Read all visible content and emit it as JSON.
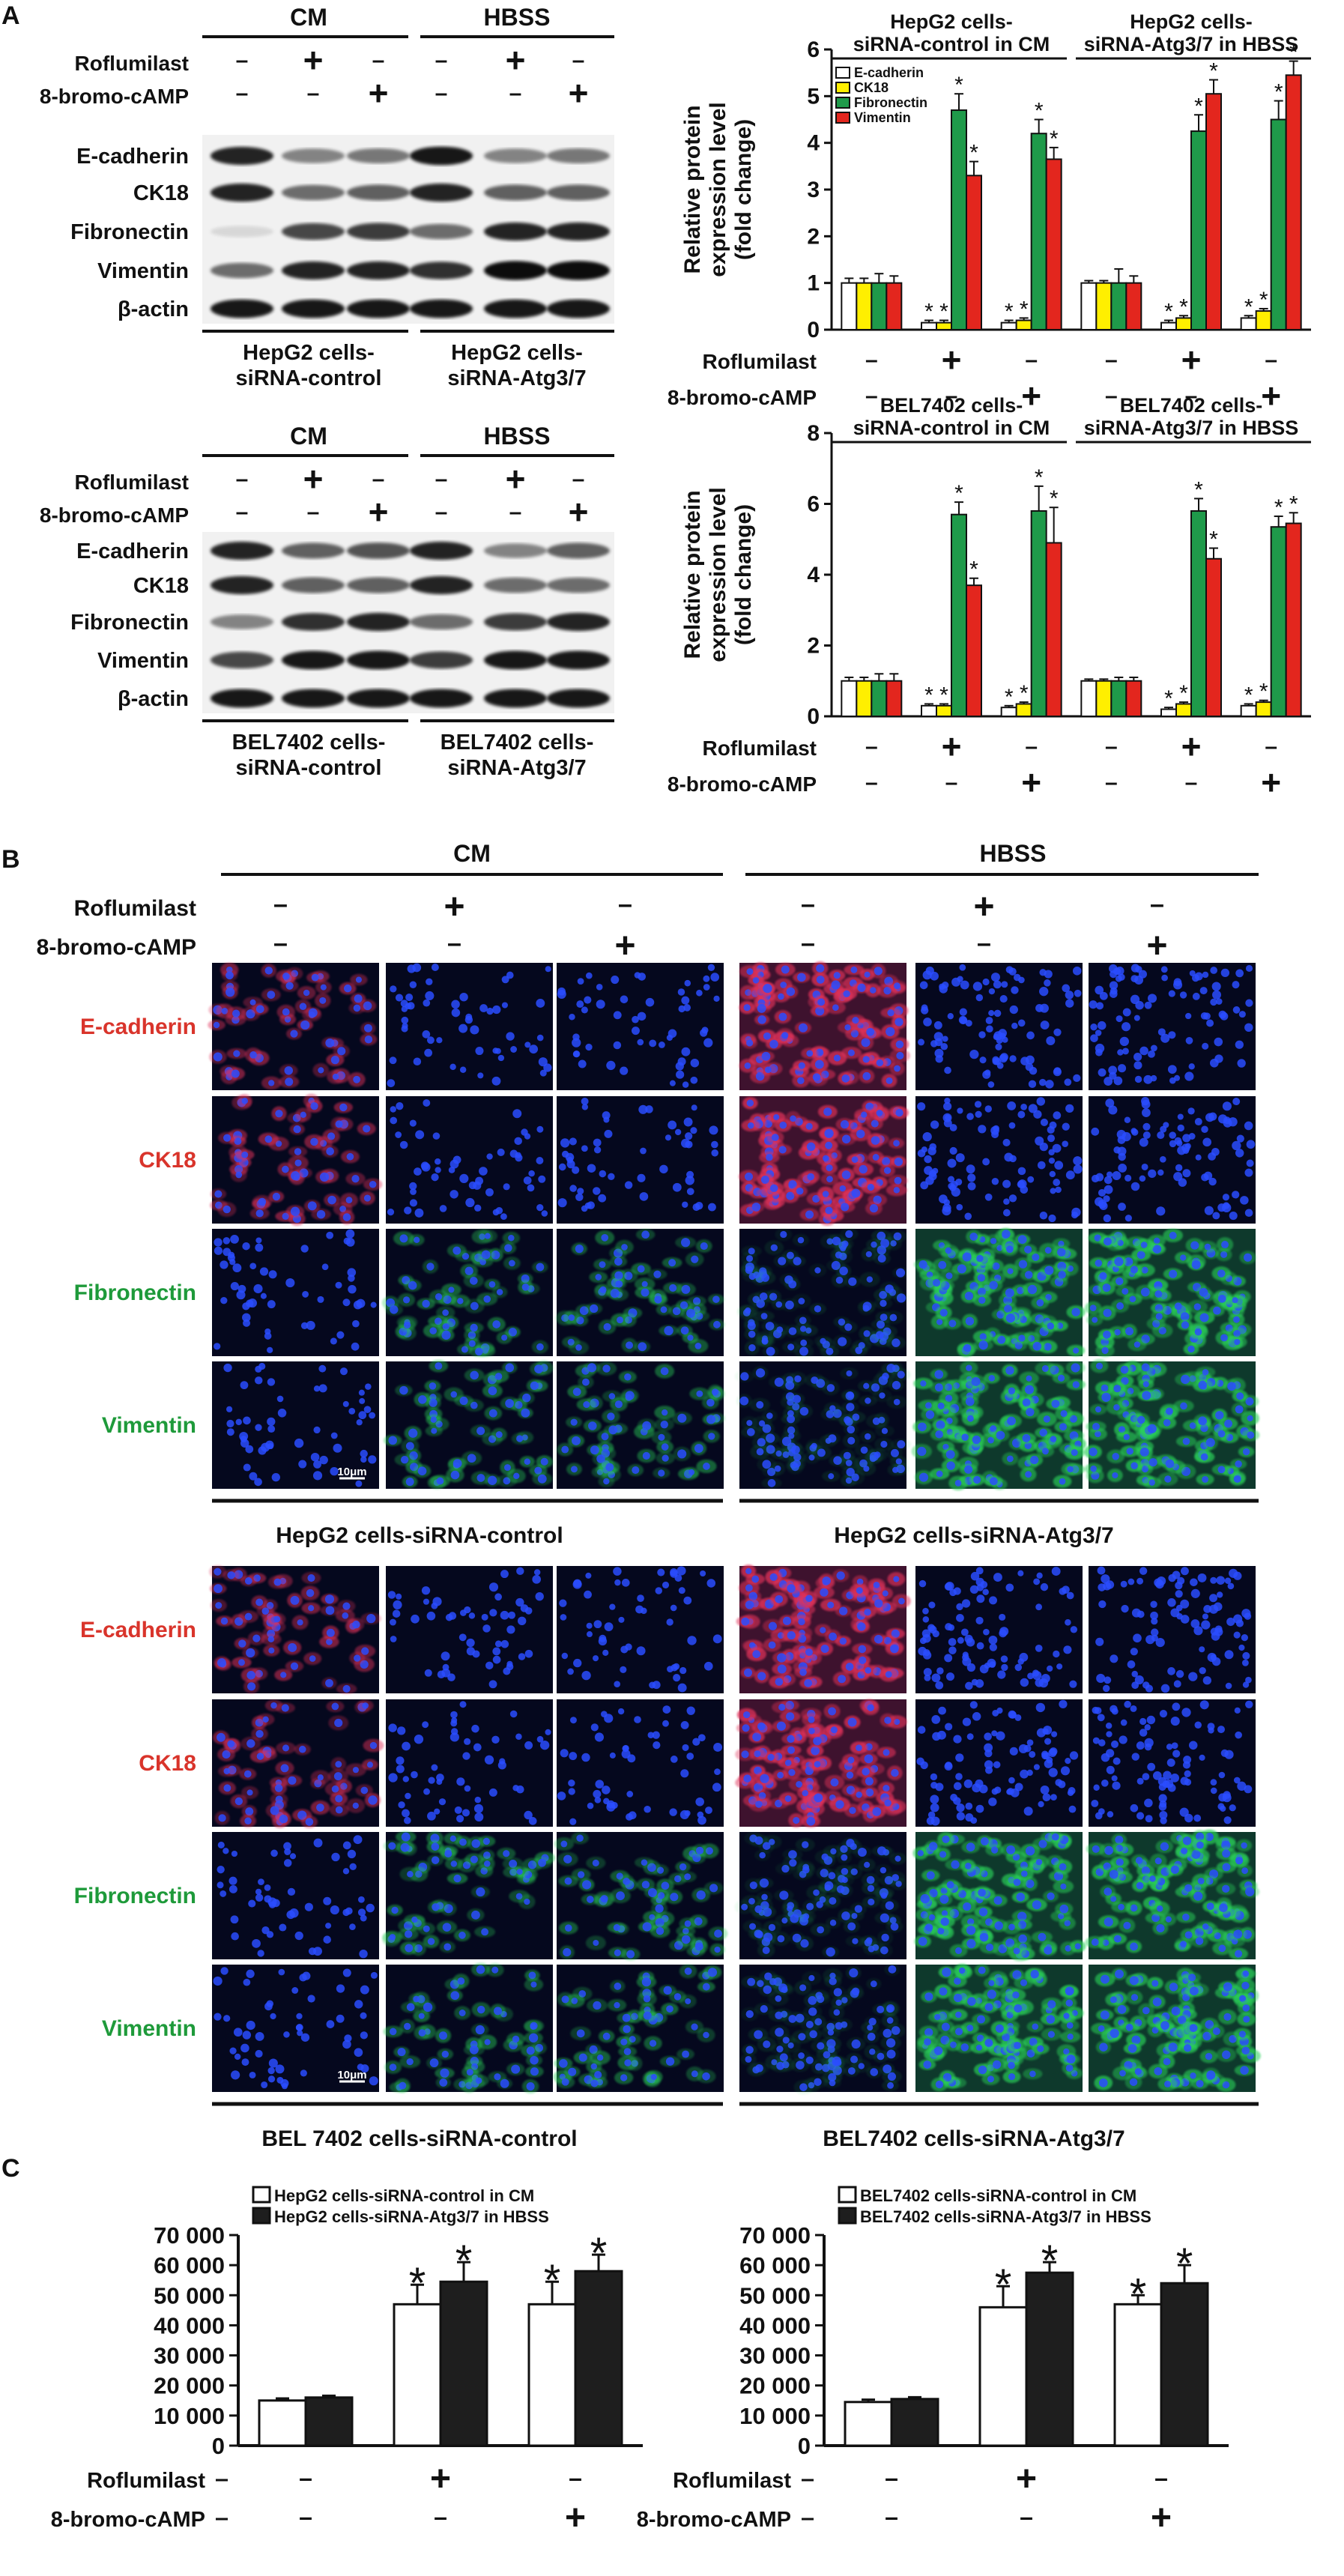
{
  "panel_labels": {
    "a": "A",
    "b": "B",
    "c": "C"
  },
  "blots": [
    {
      "groups": [
        "CM",
        "HBSS"
      ],
      "treatments": [
        {
          "name": "Roflumilast",
          "signs": [
            "–",
            "+",
            "–",
            "–",
            "+",
            "–"
          ]
        },
        {
          "name": "8-bromo-cAMP",
          "signs": [
            "–",
            "–",
            "+",
            "–",
            "–",
            "+"
          ]
        }
      ],
      "proteins": [
        "E-cadherin",
        "CK18",
        "Fibronectin",
        "Vimentin",
        "β-actin"
      ],
      "intensity": [
        [
          0.85,
          0.45,
          0.5,
          0.9,
          0.45,
          0.5
        ],
        [
          0.85,
          0.55,
          0.6,
          0.85,
          0.6,
          0.6
        ],
        [
          0.1,
          0.7,
          0.75,
          0.55,
          0.85,
          0.85
        ],
        [
          0.55,
          0.85,
          0.85,
          0.8,
          0.95,
          0.95
        ],
        [
          0.9,
          0.9,
          0.9,
          0.9,
          0.9,
          0.9
        ]
      ],
      "footer": [
        [
          "HepG2 cells-",
          "siRNA-control"
        ],
        [
          "HepG2 cells-",
          "siRNA-Atg3/7"
        ]
      ]
    },
    {
      "groups": [
        "CM",
        "HBSS"
      ],
      "treatments": [
        {
          "name": "Roflumilast",
          "signs": [
            "–",
            "+",
            "–",
            "–",
            "+",
            "–"
          ]
        },
        {
          "name": "8-bromo-cAMP",
          "signs": [
            "–",
            "–",
            "+",
            "–",
            "–",
            "+"
          ]
        }
      ],
      "proteins": [
        "E-cadherin",
        "CK18",
        "Fibronectin",
        "Vimentin",
        "β-actin"
      ],
      "intensity": [
        [
          0.85,
          0.6,
          0.65,
          0.85,
          0.45,
          0.6
        ],
        [
          0.85,
          0.6,
          0.6,
          0.85,
          0.55,
          0.55
        ],
        [
          0.45,
          0.8,
          0.85,
          0.55,
          0.75,
          0.85
        ],
        [
          0.7,
          0.9,
          0.9,
          0.75,
          0.9,
          0.9
        ],
        [
          0.9,
          0.9,
          0.9,
          0.9,
          0.9,
          0.9
        ]
      ],
      "footer": [
        [
          "BEL7402 cells-",
          "siRNA-control"
        ],
        [
          "BEL7402 cells-",
          "siRNA-Atg3/7"
        ]
      ]
    }
  ],
  "ifm": {
    "groups": [
      "CM",
      "HBSS"
    ],
    "treatments": [
      {
        "name": "Roflumilast",
        "signs": [
          "–",
          "+",
          "–",
          "–",
          "+",
          "–"
        ]
      },
      {
        "name": "8-bromo-cAMP",
        "signs": [
          "–",
          "–",
          "+",
          "–",
          "–",
          "+"
        ]
      }
    ],
    "row_labels": [
      {
        "text": "E-cadherin",
        "color": "#d9342b"
      },
      {
        "text": "CK18",
        "color": "#d9342b"
      },
      {
        "text": "Fibronectin",
        "color": "#1e9a3a"
      },
      {
        "text": "Vimentin",
        "color": "#1e9a3a"
      }
    ],
    "scale_bar": "10μm",
    "cell_lines": [
      {
        "left": "HepG2 cells-siRNA-control",
        "right": "HepG2 cells-siRNA-Atg3/7"
      },
      {
        "left": "BEL 7402 cells-siRNA-control",
        "right": "BEL7402 cells-siRNA-Atg3/7"
      }
    ]
  },
  "chart_data": [
    {
      "type": "bar",
      "title": [
        "HepG2 cells-",
        "siRNA-control in CM",
        "HepG2 cells-",
        "siRNA-Atg3/7 in HBSS"
      ],
      "ylabel": [
        "Relative protein",
        "expression level",
        "(fold change)"
      ],
      "ylim": [
        0,
        6
      ],
      "yticks": [
        0,
        1,
        2,
        3,
        4,
        5,
        6
      ],
      "legend": [
        "E-cadherin",
        "CK18",
        "Fibronectin",
        "Vimentin"
      ],
      "colors": [
        "#ffffff",
        "#ffef00",
        "#1f9a4a",
        "#e3261e"
      ],
      "groups": [
        {
          "condition": "siRNA-control in CM",
          "roflumilast": "–",
          "cAMP": "–",
          "values": [
            1.0,
            1.0,
            1.0,
            1.0
          ],
          "errors": [
            0.1,
            0.1,
            0.2,
            0.15
          ],
          "stars": [
            false,
            false,
            false,
            false
          ]
        },
        {
          "condition": "siRNA-control in CM",
          "roflumilast": "+",
          "cAMP": "–",
          "values": [
            0.15,
            0.15,
            4.7,
            3.3
          ],
          "errors": [
            0.05,
            0.05,
            0.35,
            0.3
          ],
          "stars": [
            true,
            true,
            true,
            true
          ]
        },
        {
          "condition": "siRNA-control in CM",
          "roflumilast": "–",
          "cAMP": "+",
          "values": [
            0.15,
            0.2,
            4.2,
            3.65
          ],
          "errors": [
            0.05,
            0.05,
            0.3,
            0.25
          ],
          "stars": [
            true,
            true,
            true,
            true
          ]
        },
        {
          "condition": "siRNA-Atg3/7 in HBSS",
          "roflumilast": "–",
          "cAMP": "–",
          "values": [
            1.0,
            1.0,
            1.0,
            1.0
          ],
          "errors": [
            0.05,
            0.05,
            0.3,
            0.15
          ],
          "stars": [
            false,
            false,
            false,
            false
          ]
        },
        {
          "condition": "siRNA-Atg3/7 in HBSS",
          "roflumilast": "+",
          "cAMP": "–",
          "values": [
            0.15,
            0.25,
            4.25,
            5.05
          ],
          "errors": [
            0.05,
            0.05,
            0.35,
            0.3
          ],
          "stars": [
            true,
            true,
            true,
            true
          ]
        },
        {
          "condition": "siRNA-Atg3/7 in HBSS",
          "roflumilast": "–",
          "cAMP": "+",
          "values": [
            0.25,
            0.4,
            4.5,
            5.45
          ],
          "errors": [
            0.05,
            0.05,
            0.4,
            0.3
          ],
          "stars": [
            true,
            true,
            true,
            true
          ]
        }
      ],
      "treatments": [
        {
          "name": "Roflumilast",
          "signs": [
            "–",
            "+",
            "–",
            "–",
            "+",
            "–"
          ]
        },
        {
          "name": "8-bromo-cAMP",
          "signs": [
            "–",
            "–",
            "+",
            "–",
            "–",
            "+"
          ]
        }
      ]
    },
    {
      "type": "bar",
      "title": [
        "BEL7402 cells-",
        "siRNA-control in CM",
        "BEL7402 cells-",
        "siRNA-Atg3/7 in HBSS"
      ],
      "ylabel": [
        "Relative protein",
        "expression level",
        "(fold change)"
      ],
      "ylim": [
        0,
        8
      ],
      "yticks": [
        0,
        2,
        4,
        6,
        8
      ],
      "legend": [],
      "colors": [
        "#ffffff",
        "#ffef00",
        "#1f9a4a",
        "#e3261e"
      ],
      "groups": [
        {
          "condition": "siRNA-control in CM",
          "roflumilast": "–",
          "cAMP": "–",
          "values": [
            1.0,
            1.0,
            1.0,
            1.0
          ],
          "errors": [
            0.1,
            0.1,
            0.2,
            0.2
          ],
          "stars": [
            false,
            false,
            false,
            false
          ]
        },
        {
          "condition": "siRNA-control in CM",
          "roflumilast": "+",
          "cAMP": "–",
          "values": [
            0.3,
            0.3,
            5.7,
            3.7
          ],
          "errors": [
            0.05,
            0.05,
            0.35,
            0.2
          ],
          "stars": [
            true,
            true,
            true,
            true
          ]
        },
        {
          "condition": "siRNA-control in CM",
          "roflumilast": "–",
          "cAMP": "+",
          "values": [
            0.25,
            0.35,
            5.8,
            4.9
          ],
          "errors": [
            0.05,
            0.05,
            0.7,
            1.0
          ],
          "stars": [
            true,
            true,
            true,
            true
          ]
        },
        {
          "condition": "siRNA-Atg3/7 in HBSS",
          "roflumilast": "–",
          "cAMP": "–",
          "values": [
            1.0,
            1.0,
            1.0,
            1.0
          ],
          "errors": [
            0.05,
            0.05,
            0.1,
            0.1
          ],
          "stars": [
            false,
            false,
            false,
            false
          ]
        },
        {
          "condition": "siRNA-Atg3/7 in HBSS",
          "roflumilast": "+",
          "cAMP": "–",
          "values": [
            0.2,
            0.35,
            5.8,
            4.45
          ],
          "errors": [
            0.05,
            0.05,
            0.35,
            0.3
          ],
          "stars": [
            true,
            true,
            true,
            true
          ]
        },
        {
          "condition": "siRNA-Atg3/7 in HBSS",
          "roflumilast": "–",
          "cAMP": "+",
          "values": [
            0.3,
            0.4,
            5.35,
            5.45
          ],
          "errors": [
            0.05,
            0.05,
            0.3,
            0.3
          ],
          "stars": [
            true,
            true,
            true,
            true
          ]
        }
      ],
      "treatments": [
        {
          "name": "Roflumilast",
          "signs": [
            "–",
            "+",
            "–",
            "–",
            "+",
            "–"
          ]
        },
        {
          "name": "8-bromo-cAMP",
          "signs": [
            "–",
            "–",
            "+",
            "–",
            "–",
            "+"
          ]
        }
      ]
    },
    {
      "type": "bar",
      "legend": [
        "HepG2 cells-siRNA-control in CM",
        "HepG2 cells-siRNA-Atg3/7 in HBSS"
      ],
      "colors": [
        "#ffffff",
        "#1e1e1e"
      ],
      "ylim": [
        0,
        70000
      ],
      "yticks": [
        0,
        10000,
        20000,
        30000,
        40000,
        50000,
        60000,
        70000
      ],
      "ytick_labels": [
        "0",
        "10 000",
        "20 000",
        "30 000",
        "40 000",
        "50 000",
        "60 000",
        "70 000"
      ],
      "groups": [
        {
          "roflumilast": "–",
          "cAMP": "–",
          "values": [
            15000,
            16000
          ],
          "errors": [
            700,
            600
          ],
          "stars": [
            false,
            false
          ]
        },
        {
          "roflumilast": "+",
          "cAMP": "–",
          "values": [
            47000,
            54500
          ],
          "errors": [
            6500,
            6500
          ],
          "stars": [
            true,
            true
          ]
        },
        {
          "roflumilast": "–",
          "cAMP": "+",
          "values": [
            47000,
            58000
          ],
          "errors": [
            7500,
            5500
          ],
          "stars": [
            true,
            true
          ]
        }
      ],
      "treatments": [
        {
          "name": "Roflumilast",
          "signs": [
            "–",
            "+",
            "–"
          ]
        },
        {
          "name": "8-bromo-cAMP",
          "signs": [
            "–",
            "–",
            "+"
          ]
        }
      ]
    },
    {
      "type": "bar",
      "legend": [
        "BEL7402 cells-siRNA-control in CM",
        "BEL7402 cells-siRNA-Atg3/7 in HBSS"
      ],
      "colors": [
        "#ffffff",
        "#1e1e1e"
      ],
      "ylim": [
        0,
        70000
      ],
      "yticks": [
        0,
        10000,
        20000,
        30000,
        40000,
        50000,
        60000,
        70000
      ],
      "ytick_labels": [
        "0",
        "10 000",
        "20 000",
        "30 000",
        "40 000",
        "50 000",
        "60 000",
        "70 000"
      ],
      "groups": [
        {
          "roflumilast": "–",
          "cAMP": "–",
          "values": [
            14500,
            15500
          ],
          "errors": [
            800,
            600
          ],
          "stars": [
            false,
            false
          ]
        },
        {
          "roflumilast": "+",
          "cAMP": "–",
          "values": [
            46000,
            57500
          ],
          "errors": [
            7000,
            3500
          ],
          "stars": [
            true,
            true
          ]
        },
        {
          "roflumilast": "–",
          "cAMP": "+",
          "values": [
            47000,
            54000
          ],
          "errors": [
            3000,
            6000
          ],
          "stars": [
            true,
            true
          ]
        }
      ],
      "treatments": [
        {
          "name": "Roflumilast",
          "signs": [
            "–",
            "+",
            "–"
          ]
        },
        {
          "name": "8-bromo-cAMP",
          "signs": [
            "–",
            "–",
            "+"
          ]
        }
      ]
    }
  ]
}
